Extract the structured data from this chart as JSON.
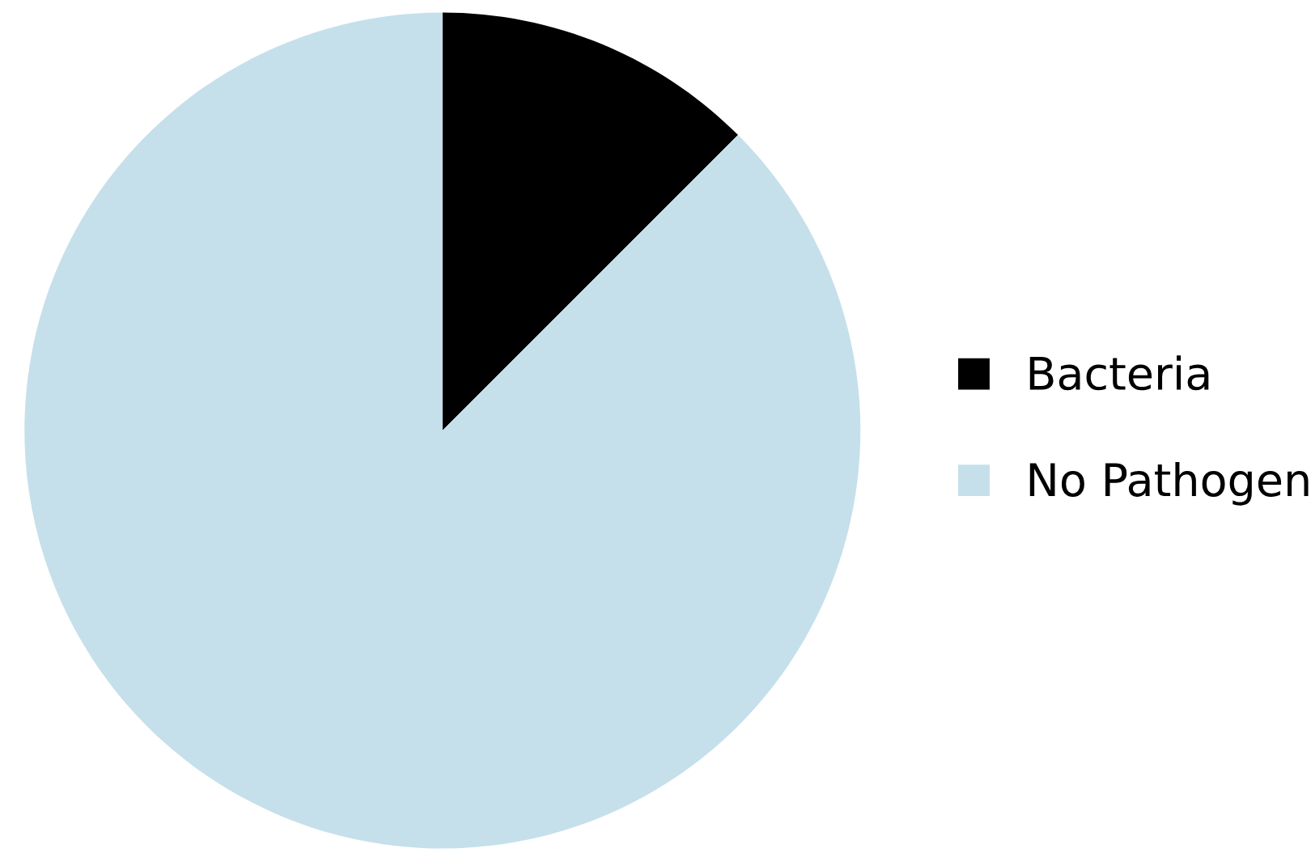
{
  "chart_data": {
    "type": "pie",
    "categories": [
      "Bacteria",
      "No Pathogen"
    ],
    "values": [
      12.5,
      87.5
    ],
    "colors": [
      "#000000",
      "#c5e0ea"
    ],
    "legend": "right"
  }
}
